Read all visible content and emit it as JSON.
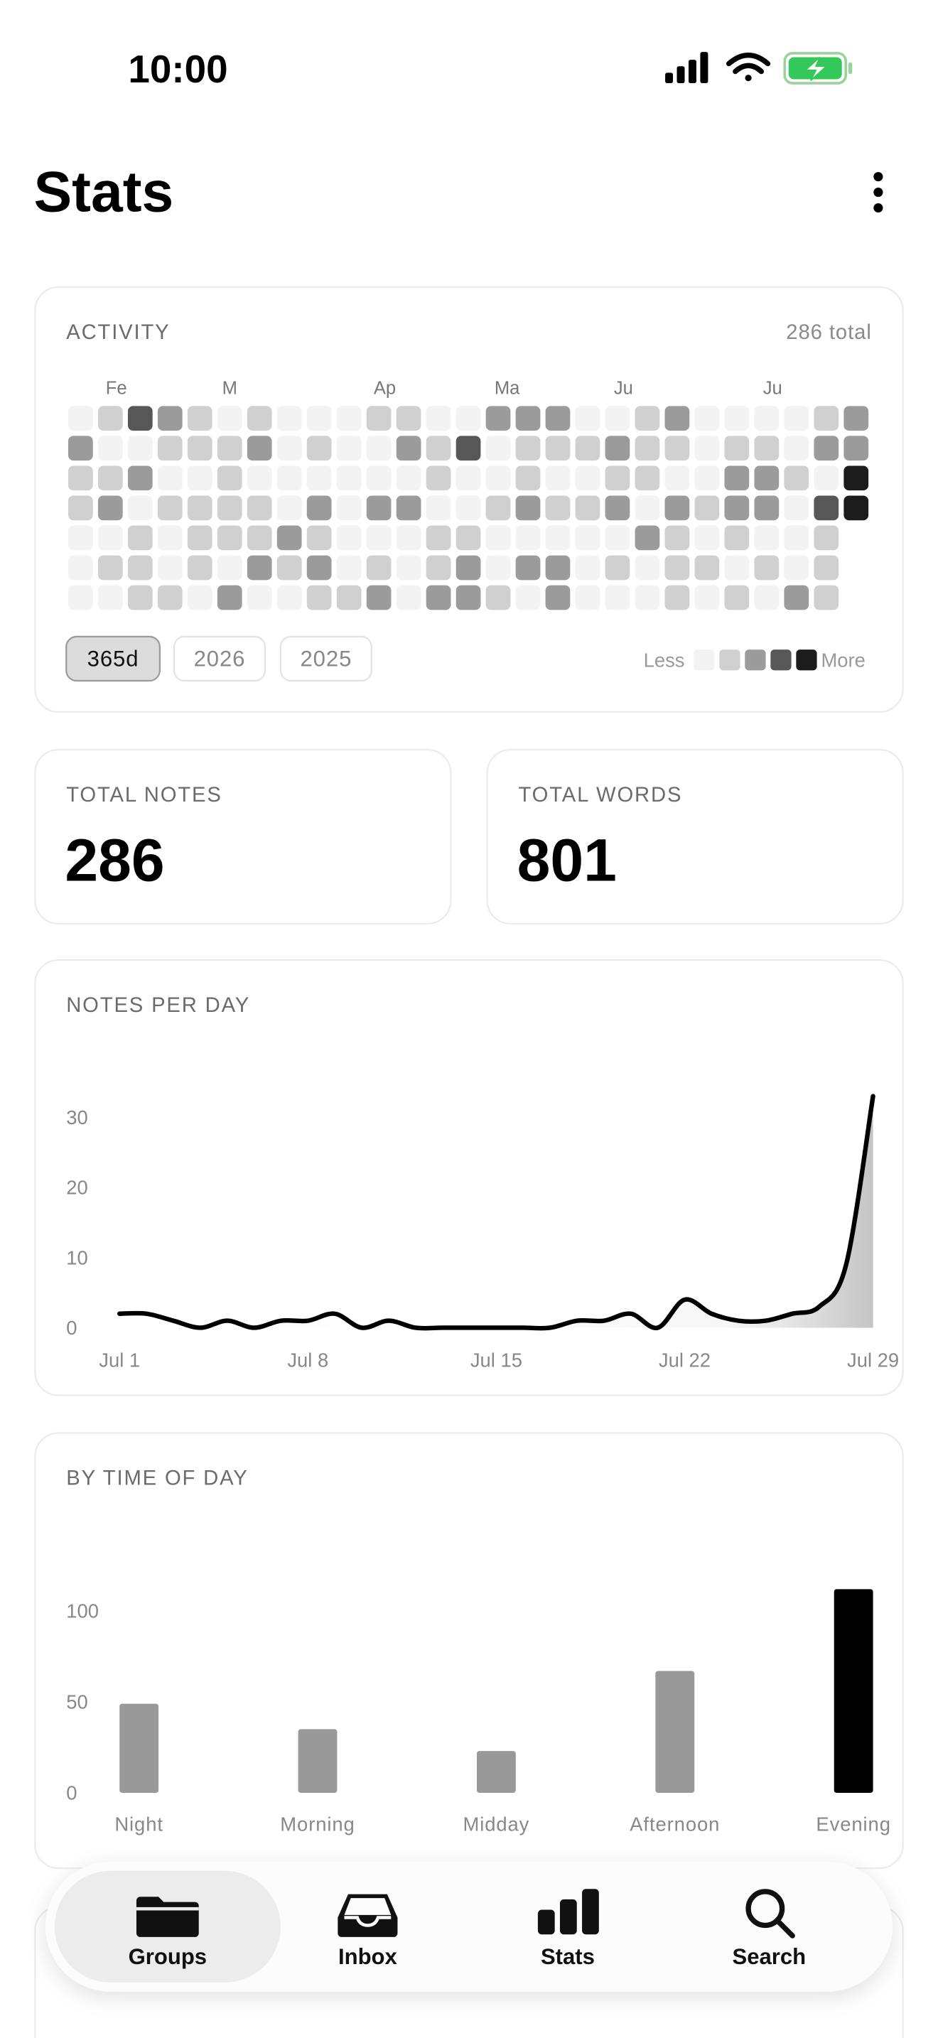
{
  "status_bar": {
    "time": "10:00"
  },
  "header": {
    "title": "Stats"
  },
  "activity": {
    "title": "ACTIVITY",
    "total": "286 total",
    "months": [
      "Fe",
      "M",
      "Ap",
      "Ma",
      "Ju",
      "Ju"
    ],
    "palette": [
      "#f3f3f3",
      "#d0d0d0",
      "#9b9b9b",
      "#575757",
      "#1c1c1c"
    ],
    "heatmap": [
      [
        0,
        1,
        3,
        2,
        1,
        0,
        1,
        0,
        0,
        0,
        1,
        1,
        0,
        0,
        2,
        2,
        2,
        0,
        0,
        1,
        2,
        0,
        0,
        0,
        0,
        1,
        2
      ],
      [
        2,
        0,
        0,
        1,
        1,
        1,
        2,
        0,
        1,
        0,
        0,
        2,
        1,
        3,
        0,
        1,
        1,
        1,
        2,
        1,
        1,
        0,
        1,
        1,
        0,
        2,
        2
      ],
      [
        1,
        1,
        2,
        0,
        0,
        1,
        0,
        0,
        0,
        0,
        0,
        0,
        1,
        0,
        0,
        1,
        0,
        0,
        1,
        1,
        0,
        0,
        2,
        2,
        1,
        0,
        4
      ],
      [
        1,
        2,
        0,
        1,
        1,
        1,
        1,
        0,
        2,
        0,
        2,
        2,
        0,
        0,
        1,
        2,
        1,
        1,
        2,
        0,
        2,
        1,
        2,
        2,
        0,
        3,
        4
      ],
      [
        0,
        0,
        1,
        0,
        1,
        1,
        1,
        2,
        1,
        0,
        0,
        0,
        1,
        1,
        0,
        0,
        0,
        0,
        0,
        2,
        1,
        0,
        1,
        0,
        0,
        1,
        null
      ],
      [
        0,
        1,
        1,
        0,
        1,
        0,
        2,
        1,
        2,
        0,
        1,
        0,
        1,
        2,
        0,
        2,
        2,
        0,
        1,
        0,
        1,
        1,
        0,
        1,
        0,
        1,
        null
      ],
      [
        0,
        0,
        1,
        1,
        0,
        2,
        0,
        0,
        1,
        1,
        2,
        0,
        2,
        2,
        1,
        0,
        2,
        0,
        0,
        0,
        1,
        0,
        1,
        0,
        2,
        1,
        null
      ]
    ],
    "filters": [
      "365d",
      "2026",
      "2025"
    ],
    "active_filter": 0,
    "legend": {
      "less": "Less",
      "more": "More"
    }
  },
  "stats": [
    {
      "label": "TOTAL NOTES",
      "value": 286
    },
    {
      "label": "TOTAL WORDS",
      "value": 801
    }
  ],
  "chart_data": [
    {
      "type": "line",
      "title": "NOTES PER DAY",
      "categories": [
        "Jul 1",
        null,
        null,
        null,
        null,
        null,
        null,
        "Jul 8",
        null,
        null,
        null,
        null,
        null,
        null,
        "Jul 15",
        null,
        null,
        null,
        null,
        null,
        null,
        "Jul 22",
        null,
        null,
        null,
        null,
        null,
        null,
        "Jul 29"
      ],
      "values": [
        2,
        2,
        1,
        0,
        1,
        0,
        1,
        1,
        2,
        0,
        1,
        0,
        0,
        0,
        0,
        0,
        0,
        1,
        1,
        2,
        0,
        4,
        2,
        1,
        1,
        2,
        3,
        9,
        33
      ],
      "color": "#000000",
      "ylim": [
        0,
        35
      ],
      "yticks": [
        0,
        10,
        20,
        30
      ]
    },
    {
      "type": "bar",
      "title": "BY TIME OF DAY",
      "categories": [
        "Night",
        "Morning",
        "Midday",
        "Afternoon",
        "Evening"
      ],
      "values": [
        49,
        35,
        23,
        67,
        112
      ],
      "colors": [
        "#999999",
        "#999999",
        "#999999",
        "#999999",
        "#000000"
      ],
      "ylim": [
        0,
        115
      ],
      "yticks": [
        0,
        50,
        100
      ]
    }
  ],
  "tabs": {
    "items": [
      "Groups",
      "Inbox",
      "Stats",
      "Search"
    ],
    "active": 0
  }
}
